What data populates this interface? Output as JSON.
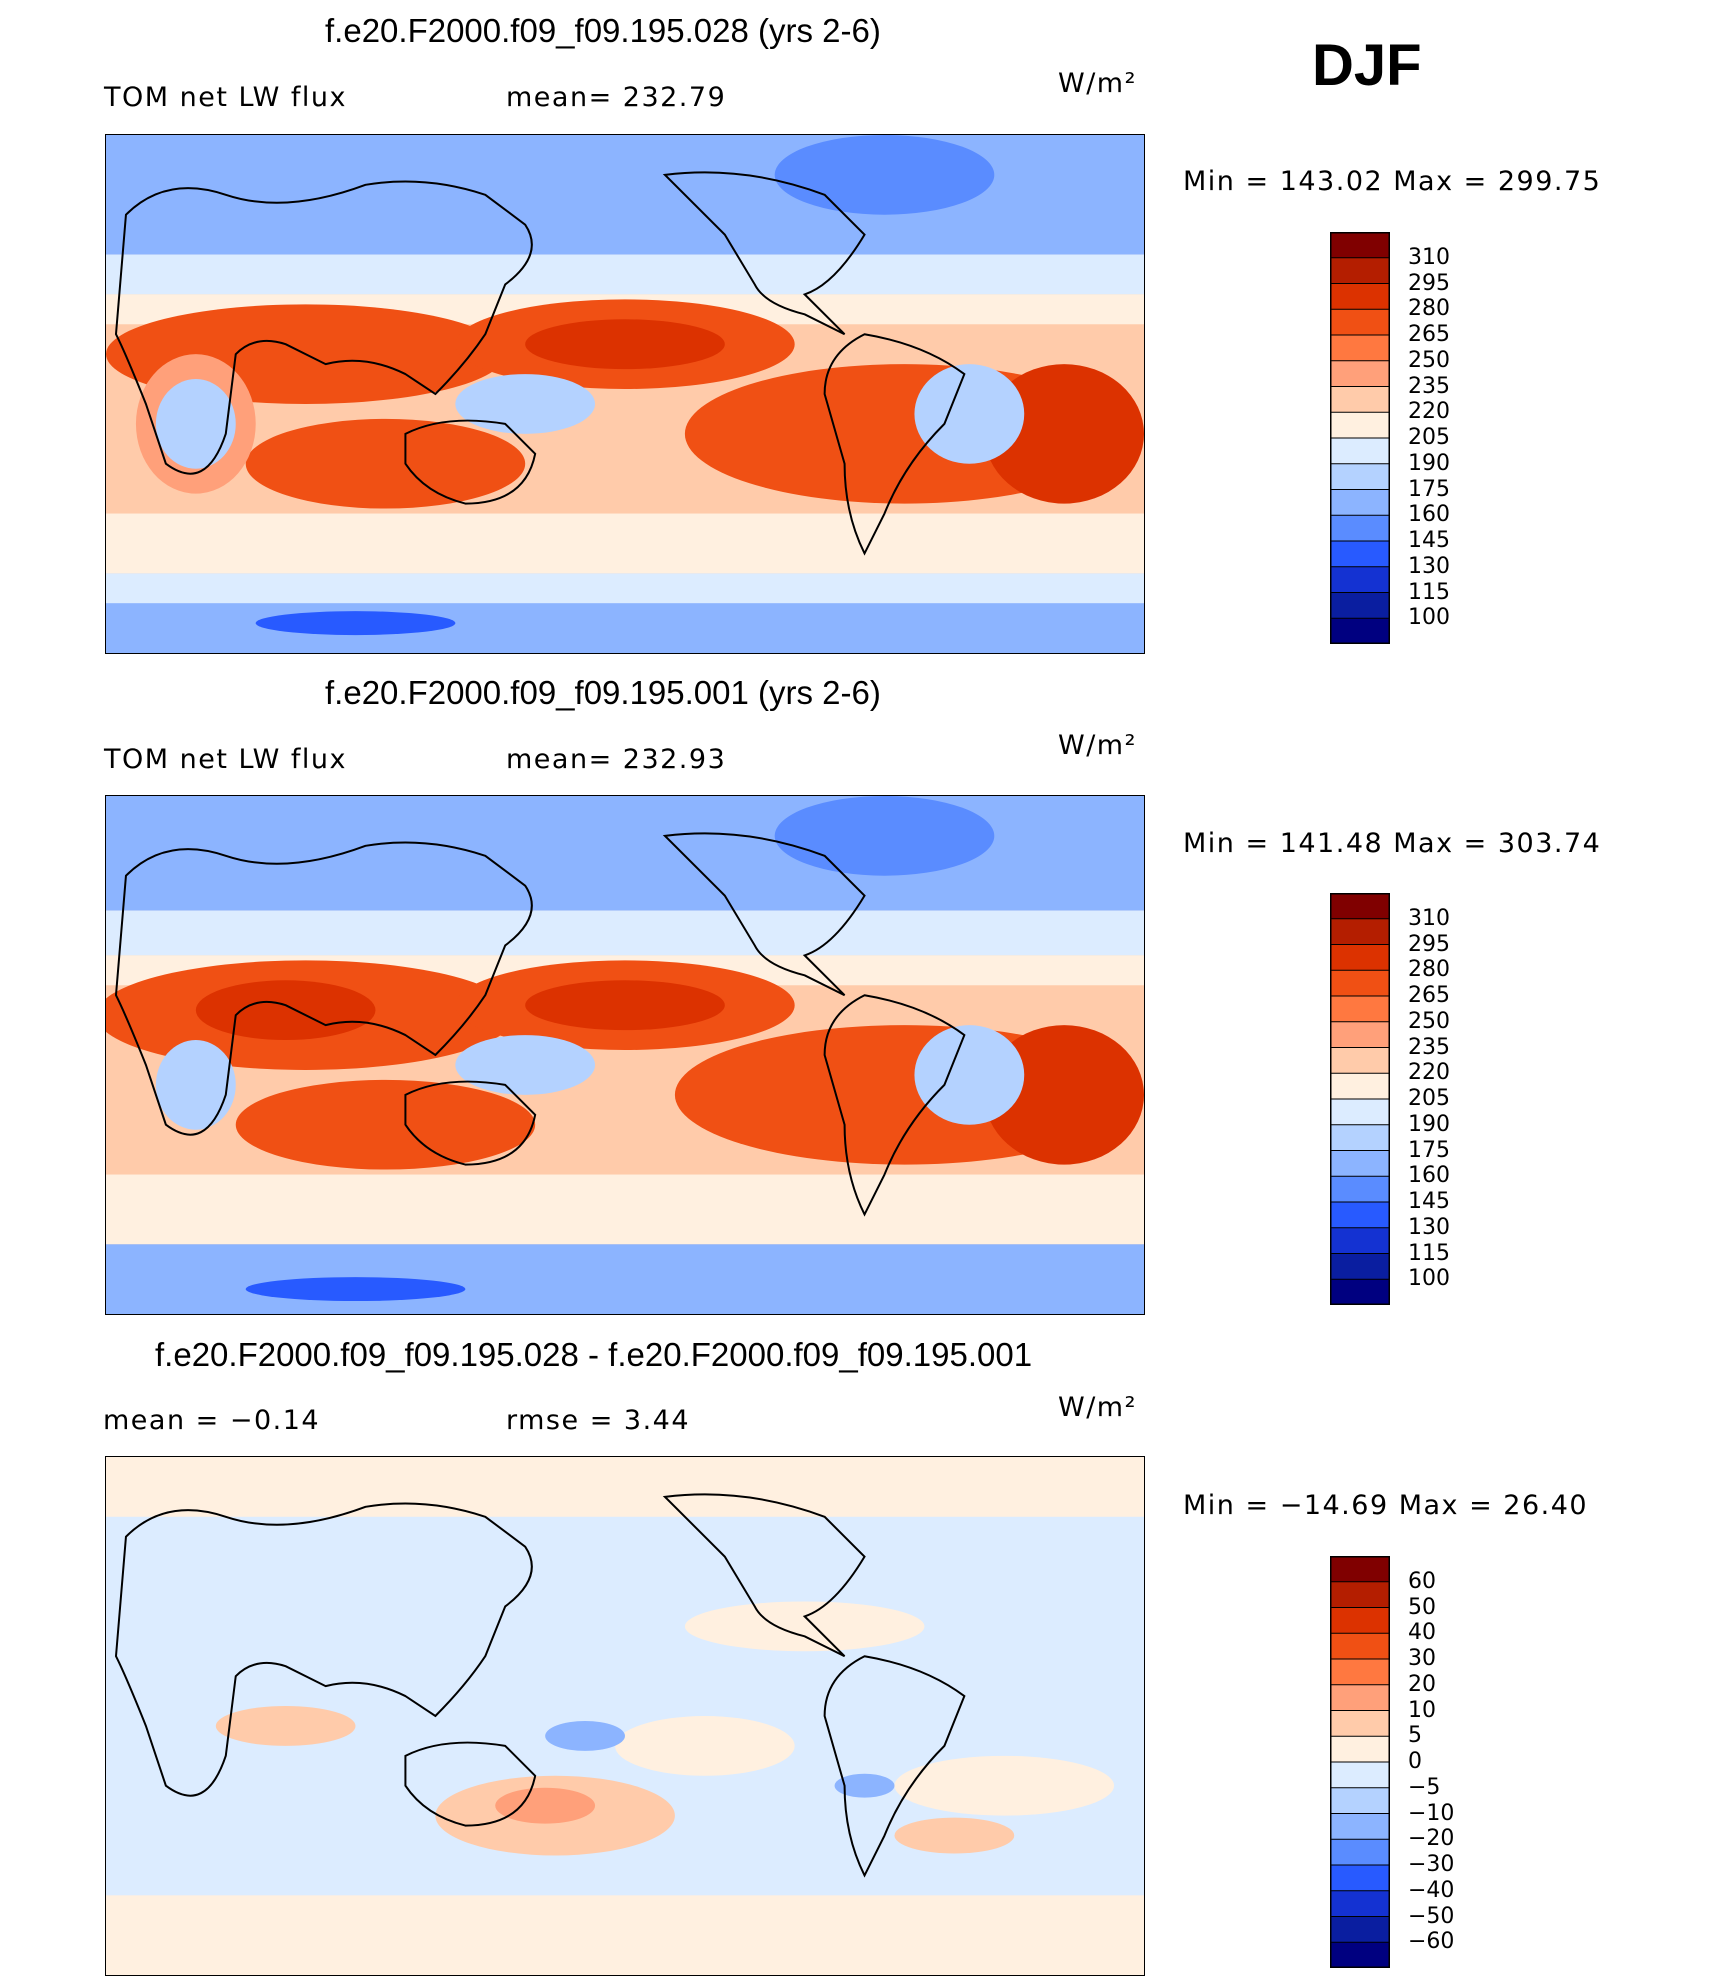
{
  "season": "DJF",
  "units": "W/m²",
  "panels": [
    {
      "title": "f.e20.F2000.f09_f09.195.028 (yrs 2-6)",
      "variable": "TOM net LW flux",
      "stat": "mean= 232.79",
      "minmax": "Min = 143.02 Max = 299.75"
    },
    {
      "title": "f.e20.F2000.f09_f09.195.001 (yrs 2-6)",
      "variable": "TOM net LW flux",
      "stat": "mean= 232.93",
      "minmax": "Min = 141.48 Max = 303.74"
    },
    {
      "title": "f.e20.F2000.f09_f09.195.028 - f.e20.F2000.f09_f09.195.001",
      "variable": "mean = −0.14",
      "stat": "rmse = 3.44",
      "minmax": "Min = −14.69 Max = 26.40"
    }
  ],
  "chart_data": [
    {
      "type": "heatmap",
      "title": "f.e20.F2000.f09_f09.195.028 (yrs 2-6)",
      "variable": "TOM net LW flux",
      "units": "W/m2",
      "mean": 232.79,
      "min": 143.02,
      "max": 299.75,
      "colorbar_levels": [
        "310",
        "295",
        "280",
        "265",
        "250",
        "235",
        "220",
        "205",
        "190",
        "175",
        "160",
        "145",
        "130",
        "115",
        "100"
      ],
      "colorbar_colors": [
        "#800000",
        "#b41e00",
        "#dc3200",
        "#f05014",
        "#ff7840",
        "#ffa07a",
        "#ffcbaa",
        "#fff0e0",
        "#dcecff",
        "#b4d2ff",
        "#8cb4ff",
        "#5a8cff",
        "#285aff",
        "#1432d2",
        "#0a1ea0",
        "#000080"
      ]
    },
    {
      "type": "heatmap",
      "title": "f.e20.F2000.f09_f09.195.001 (yrs 2-6)",
      "variable": "TOM net LW flux",
      "units": "W/m2",
      "mean": 232.93,
      "min": 141.48,
      "max": 303.74,
      "colorbar_levels": [
        "310",
        "295",
        "280",
        "265",
        "250",
        "235",
        "220",
        "205",
        "190",
        "175",
        "160",
        "145",
        "130",
        "115",
        "100"
      ],
      "colorbar_colors": [
        "#800000",
        "#b41e00",
        "#dc3200",
        "#f05014",
        "#ff7840",
        "#ffa07a",
        "#ffcbaa",
        "#fff0e0",
        "#dcecff",
        "#b4d2ff",
        "#8cb4ff",
        "#5a8cff",
        "#285aff",
        "#1432d2",
        "#0a1ea0",
        "#000080"
      ]
    },
    {
      "type": "heatmap",
      "title": "f.e20.F2000.f09_f09.195.028 - f.e20.F2000.f09_f09.195.001",
      "units": "W/m2",
      "mean": -0.14,
      "rmse": 3.44,
      "min": -14.69,
      "max": 26.4,
      "colorbar_levels": [
        "60",
        "50",
        "40",
        "30",
        "20",
        "10",
        "5",
        "0",
        "−5",
        "−10",
        "−20",
        "−30",
        "−40",
        "−50",
        "−60"
      ],
      "colorbar_colors": [
        "#800000",
        "#b41e00",
        "#dc3200",
        "#f05014",
        "#ff7840",
        "#ffa07a",
        "#ffcbaa",
        "#fff0e0",
        "#dcecff",
        "#b4d2ff",
        "#8cb4ff",
        "#5a8cff",
        "#285aff",
        "#1432d2",
        "#0a1ea0",
        "#000080"
      ]
    }
  ]
}
